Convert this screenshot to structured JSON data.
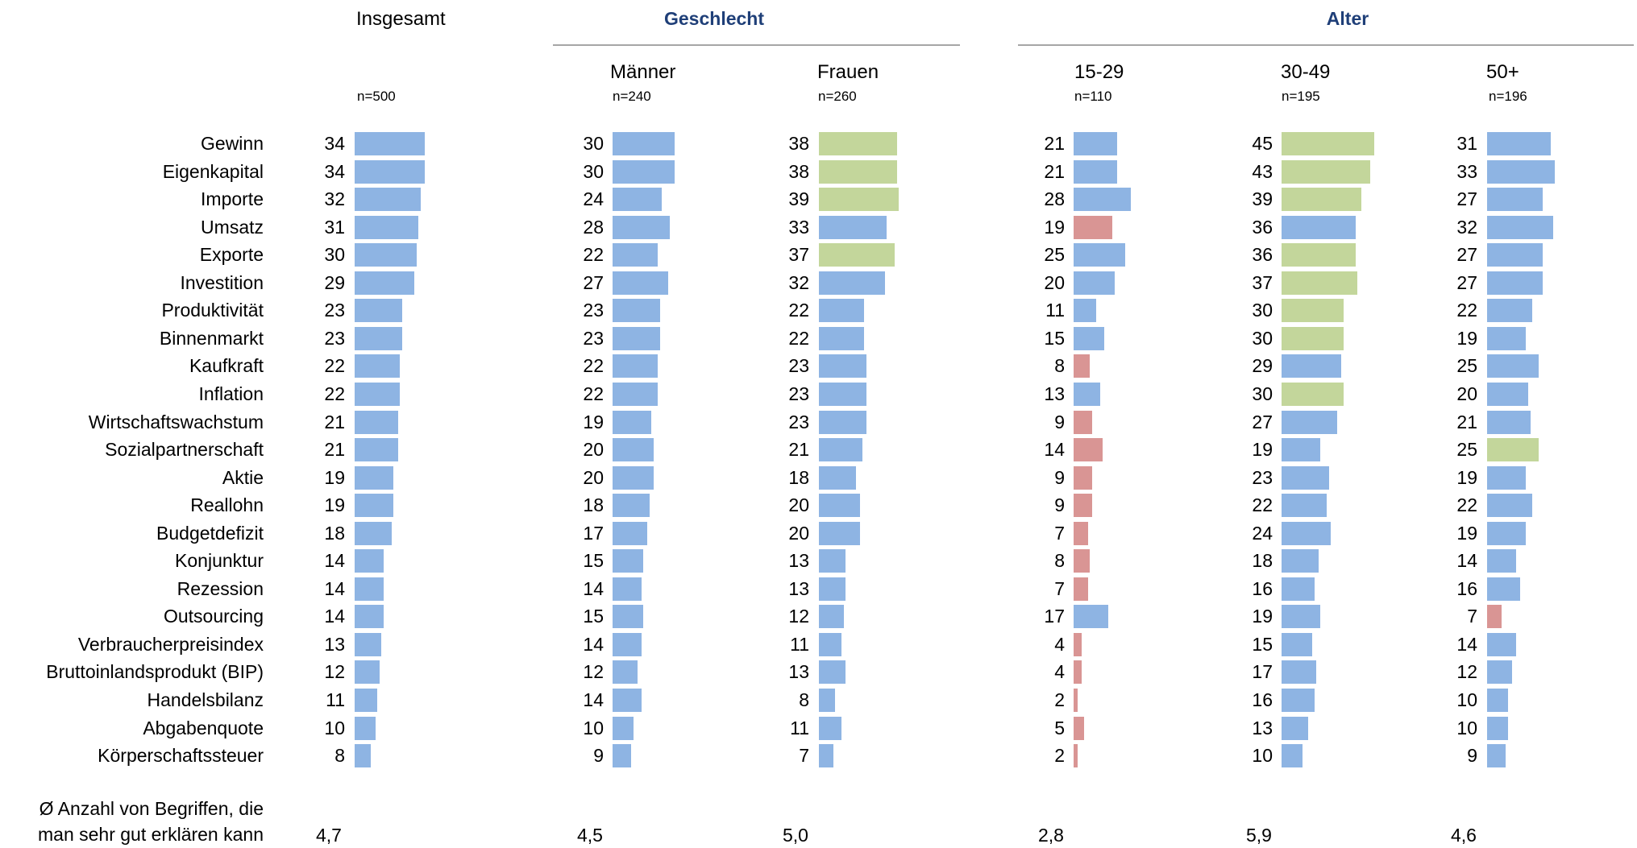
{
  "chart_data": {
    "type": "bar",
    "orientation": "horizontal",
    "colors": {
      "default": "#8eb4e3",
      "higher": "#c3d69b",
      "lower": "#d99594",
      "group_title": "#1f3f78",
      "rule": "#a6a6a6"
    },
    "groups": [
      {
        "title": "",
        "columns": [
          0
        ]
      },
      {
        "title": "Geschlecht",
        "columns": [
          1,
          2
        ]
      },
      {
        "title": "Alter",
        "columns": [
          3,
          4,
          5
        ]
      }
    ],
    "categories": [
      "Gewinn",
      "Eigenkapital",
      "Importe",
      "Umsatz",
      "Exporte",
      "Investition",
      "Produktivität",
      "Binnenmarkt",
      "Kaufkraft",
      "Inflation",
      "Wirtschaftswachstum",
      "Sozialpartnerschaft",
      "Aktie",
      "Reallohn",
      "Budgetdefizit",
      "Konjunktur",
      "Rezession",
      "Outsourcing",
      "Verbraucherpreisindex",
      "Bruttoinlandsprodukt (BIP)",
      "Handelsbilanz",
      "Abgabenquote",
      "Körperschaftssteuer"
    ],
    "series": [
      {
        "name": "Insgesamt",
        "n": "n=500",
        "avg": "4,7",
        "values": [
          34,
          34,
          32,
          31,
          30,
          29,
          23,
          23,
          22,
          22,
          21,
          21,
          19,
          19,
          18,
          14,
          14,
          14,
          13,
          12,
          11,
          10,
          8
        ],
        "highlight": [
          "d",
          "d",
          "d",
          "d",
          "d",
          "d",
          "d",
          "d",
          "d",
          "d",
          "d",
          "d",
          "d",
          "d",
          "d",
          "d",
          "d",
          "d",
          "d",
          "d",
          "d",
          "d",
          "d"
        ]
      },
      {
        "name": "Männer",
        "n": "n=240",
        "avg": "4,5",
        "values": [
          30,
          30,
          24,
          28,
          22,
          27,
          23,
          23,
          22,
          22,
          19,
          20,
          20,
          18,
          17,
          15,
          14,
          15,
          14,
          12,
          14,
          10,
          9
        ],
        "highlight": [
          "d",
          "d",
          "d",
          "d",
          "d",
          "d",
          "d",
          "d",
          "d",
          "d",
          "d",
          "d",
          "d",
          "d",
          "d",
          "d",
          "d",
          "d",
          "d",
          "d",
          "d",
          "d",
          "d"
        ]
      },
      {
        "name": "Frauen",
        "n": "n=260",
        "avg": "5,0",
        "values": [
          38,
          38,
          39,
          33,
          37,
          32,
          22,
          22,
          23,
          23,
          23,
          21,
          18,
          20,
          20,
          13,
          13,
          12,
          11,
          13,
          8,
          11,
          7
        ],
        "highlight": [
          "h",
          "h",
          "h",
          "d",
          "h",
          "d",
          "d",
          "d",
          "d",
          "d",
          "d",
          "d",
          "d",
          "d",
          "d",
          "d",
          "d",
          "d",
          "d",
          "d",
          "d",
          "d",
          "d"
        ]
      },
      {
        "name": "15-29",
        "n": "n=110",
        "avg": "2,8",
        "values": [
          21,
          21,
          28,
          19,
          25,
          20,
          11,
          15,
          8,
          13,
          9,
          14,
          9,
          9,
          7,
          8,
          7,
          17,
          4,
          4,
          2,
          5,
          2
        ],
        "highlight": [
          "d",
          "d",
          "d",
          "l",
          "d",
          "d",
          "d",
          "d",
          "l",
          "d",
          "l",
          "l",
          "l",
          "l",
          "l",
          "l",
          "l",
          "d",
          "l",
          "l",
          "l",
          "l",
          "l"
        ]
      },
      {
        "name": "30-49",
        "n": "n=195",
        "avg": "5,9",
        "values": [
          45,
          43,
          39,
          36,
          36,
          37,
          30,
          30,
          29,
          30,
          27,
          19,
          23,
          22,
          24,
          18,
          16,
          19,
          15,
          17,
          16,
          13,
          10
        ],
        "highlight": [
          "h",
          "h",
          "h",
          "d",
          "h",
          "h",
          "h",
          "h",
          "d",
          "h",
          "d",
          "d",
          "d",
          "d",
          "d",
          "d",
          "d",
          "d",
          "d",
          "d",
          "d",
          "d",
          "d"
        ]
      },
      {
        "name": "50+",
        "n": "n=196",
        "avg": "4,6",
        "values": [
          31,
          33,
          27,
          32,
          27,
          27,
          22,
          19,
          25,
          20,
          21,
          25,
          19,
          22,
          19,
          14,
          16,
          7,
          14,
          12,
          10,
          10,
          9
        ],
        "highlight": [
          "d",
          "d",
          "d",
          "d",
          "d",
          "d",
          "d",
          "d",
          "d",
          "d",
          "d",
          "h",
          "d",
          "d",
          "d",
          "d",
          "d",
          "l",
          "d",
          "d",
          "d",
          "d",
          "d"
        ]
      }
    ],
    "footer_label": [
      "Ø Anzahl von Begriffen, die",
      "man sehr gut erklären kann"
    ]
  }
}
